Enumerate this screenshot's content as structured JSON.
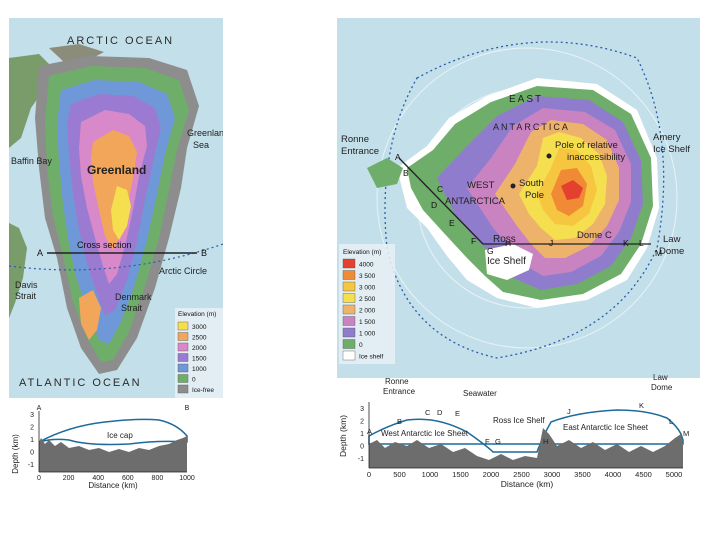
{
  "greenland": {
    "ocean_top": "ARCTIC OCEAN",
    "ocean_bottom": "ATLANTIC OCEAN",
    "name": "Greenland",
    "labels": {
      "greenland_sea": [
        "Greenland",
        "Sea"
      ],
      "baffin_bay": "Baffin Bay",
      "davis_strait": [
        "Davis",
        "Strait"
      ],
      "denmark_strait": [
        "Denmark",
        "Strait"
      ],
      "arctic_circle": "Arctic Circle",
      "cross_section": "Cross section",
      "point_a": "A",
      "point_b": "B"
    },
    "legend": {
      "title": "Elevation (m)",
      "items": [
        {
          "label": "3000",
          "color": "#f5df4f"
        },
        {
          "label": "2500",
          "color": "#f2a65a"
        },
        {
          "label": "2000",
          "color": "#d889c9"
        },
        {
          "label": "1500",
          "color": "#9b7bd1"
        },
        {
          "label": "1000",
          "color": "#6f98d8"
        },
        {
          "label": "0",
          "color": "#6fae6a"
        },
        {
          "label": "Ice-free",
          "color": "#8d8d8d"
        }
      ]
    },
    "profile": {
      "point_a": "A",
      "point_b": "B",
      "ice_label": "Ice cap",
      "ylabel": "Depth (km)",
      "xlabel": "Distance (km)",
      "yticks": [
        "3",
        "2",
        "1",
        "0",
        "-1"
      ],
      "xticks": [
        "0",
        "200",
        "400",
        "600",
        "800",
        "1000"
      ]
    }
  },
  "antarctica": {
    "labels": {
      "east": "EAST",
      "antarctica": "ANTARCTICA",
      "west": "WEST",
      "west_antarctica": "ANTARCTICA",
      "pole_inaccessibility": [
        "Pole of relative",
        "inaccessibility"
      ],
      "south_pole": [
        "South",
        "Pole"
      ],
      "ronne": [
        "Ronne",
        "Entrance"
      ],
      "amery": [
        "Amery",
        "Ice Shelf"
      ],
      "ross": [
        "Ross",
        "Ice Shelf"
      ],
      "dome_c": "Dome C",
      "law_dome": [
        "Law",
        "Dome"
      ],
      "points": [
        "A",
        "B",
        "C",
        "D",
        "E",
        "F",
        "G",
        "H",
        "J",
        "K",
        "L",
        "M"
      ]
    },
    "legend": {
      "title": "Elevation (m)",
      "items": [
        {
          "label": "4000",
          "color": "#e4402f"
        },
        {
          "label": "3 500",
          "color": "#f08a35"
        },
        {
          "label": "3 000",
          "color": "#f6c640"
        },
        {
          "label": "2 500",
          "color": "#f5df4f"
        },
        {
          "label": "2 000",
          "color": "#eeb36b"
        },
        {
          "label": "1 500",
          "color": "#c983c0"
        },
        {
          "label": "1 000",
          "color": "#8f7ccc"
        },
        {
          "label": "0",
          "color": "#6fae6a"
        },
        {
          "label": "Ice shelf",
          "color": "#ffffff"
        }
      ]
    },
    "profile": {
      "ronne": [
        "Ronne",
        "Entrance"
      ],
      "seawater": "Seawater",
      "law_dome": [
        "Law",
        "Dome"
      ],
      "west_sheet": "West Antarctic Ice Sheet",
      "ross_shelf": "Ross Ice Shelf",
      "east_sheet": "East Antarctic Ice Sheet",
      "ylabel": "Depth (km)",
      "xlabel": "Distance (km)",
      "yticks": [
        "3",
        "2",
        "1",
        "0",
        "-1"
      ],
      "xticks": [
        "0",
        "500",
        "1000",
        "1500",
        "2000",
        "2500",
        "3000",
        "3500",
        "4000",
        "4500",
        "5000"
      ],
      "points": [
        "A",
        "B",
        "C",
        "D",
        "E",
        "F",
        "G",
        "H",
        "J",
        "K",
        "L",
        "M"
      ]
    }
  }
}
